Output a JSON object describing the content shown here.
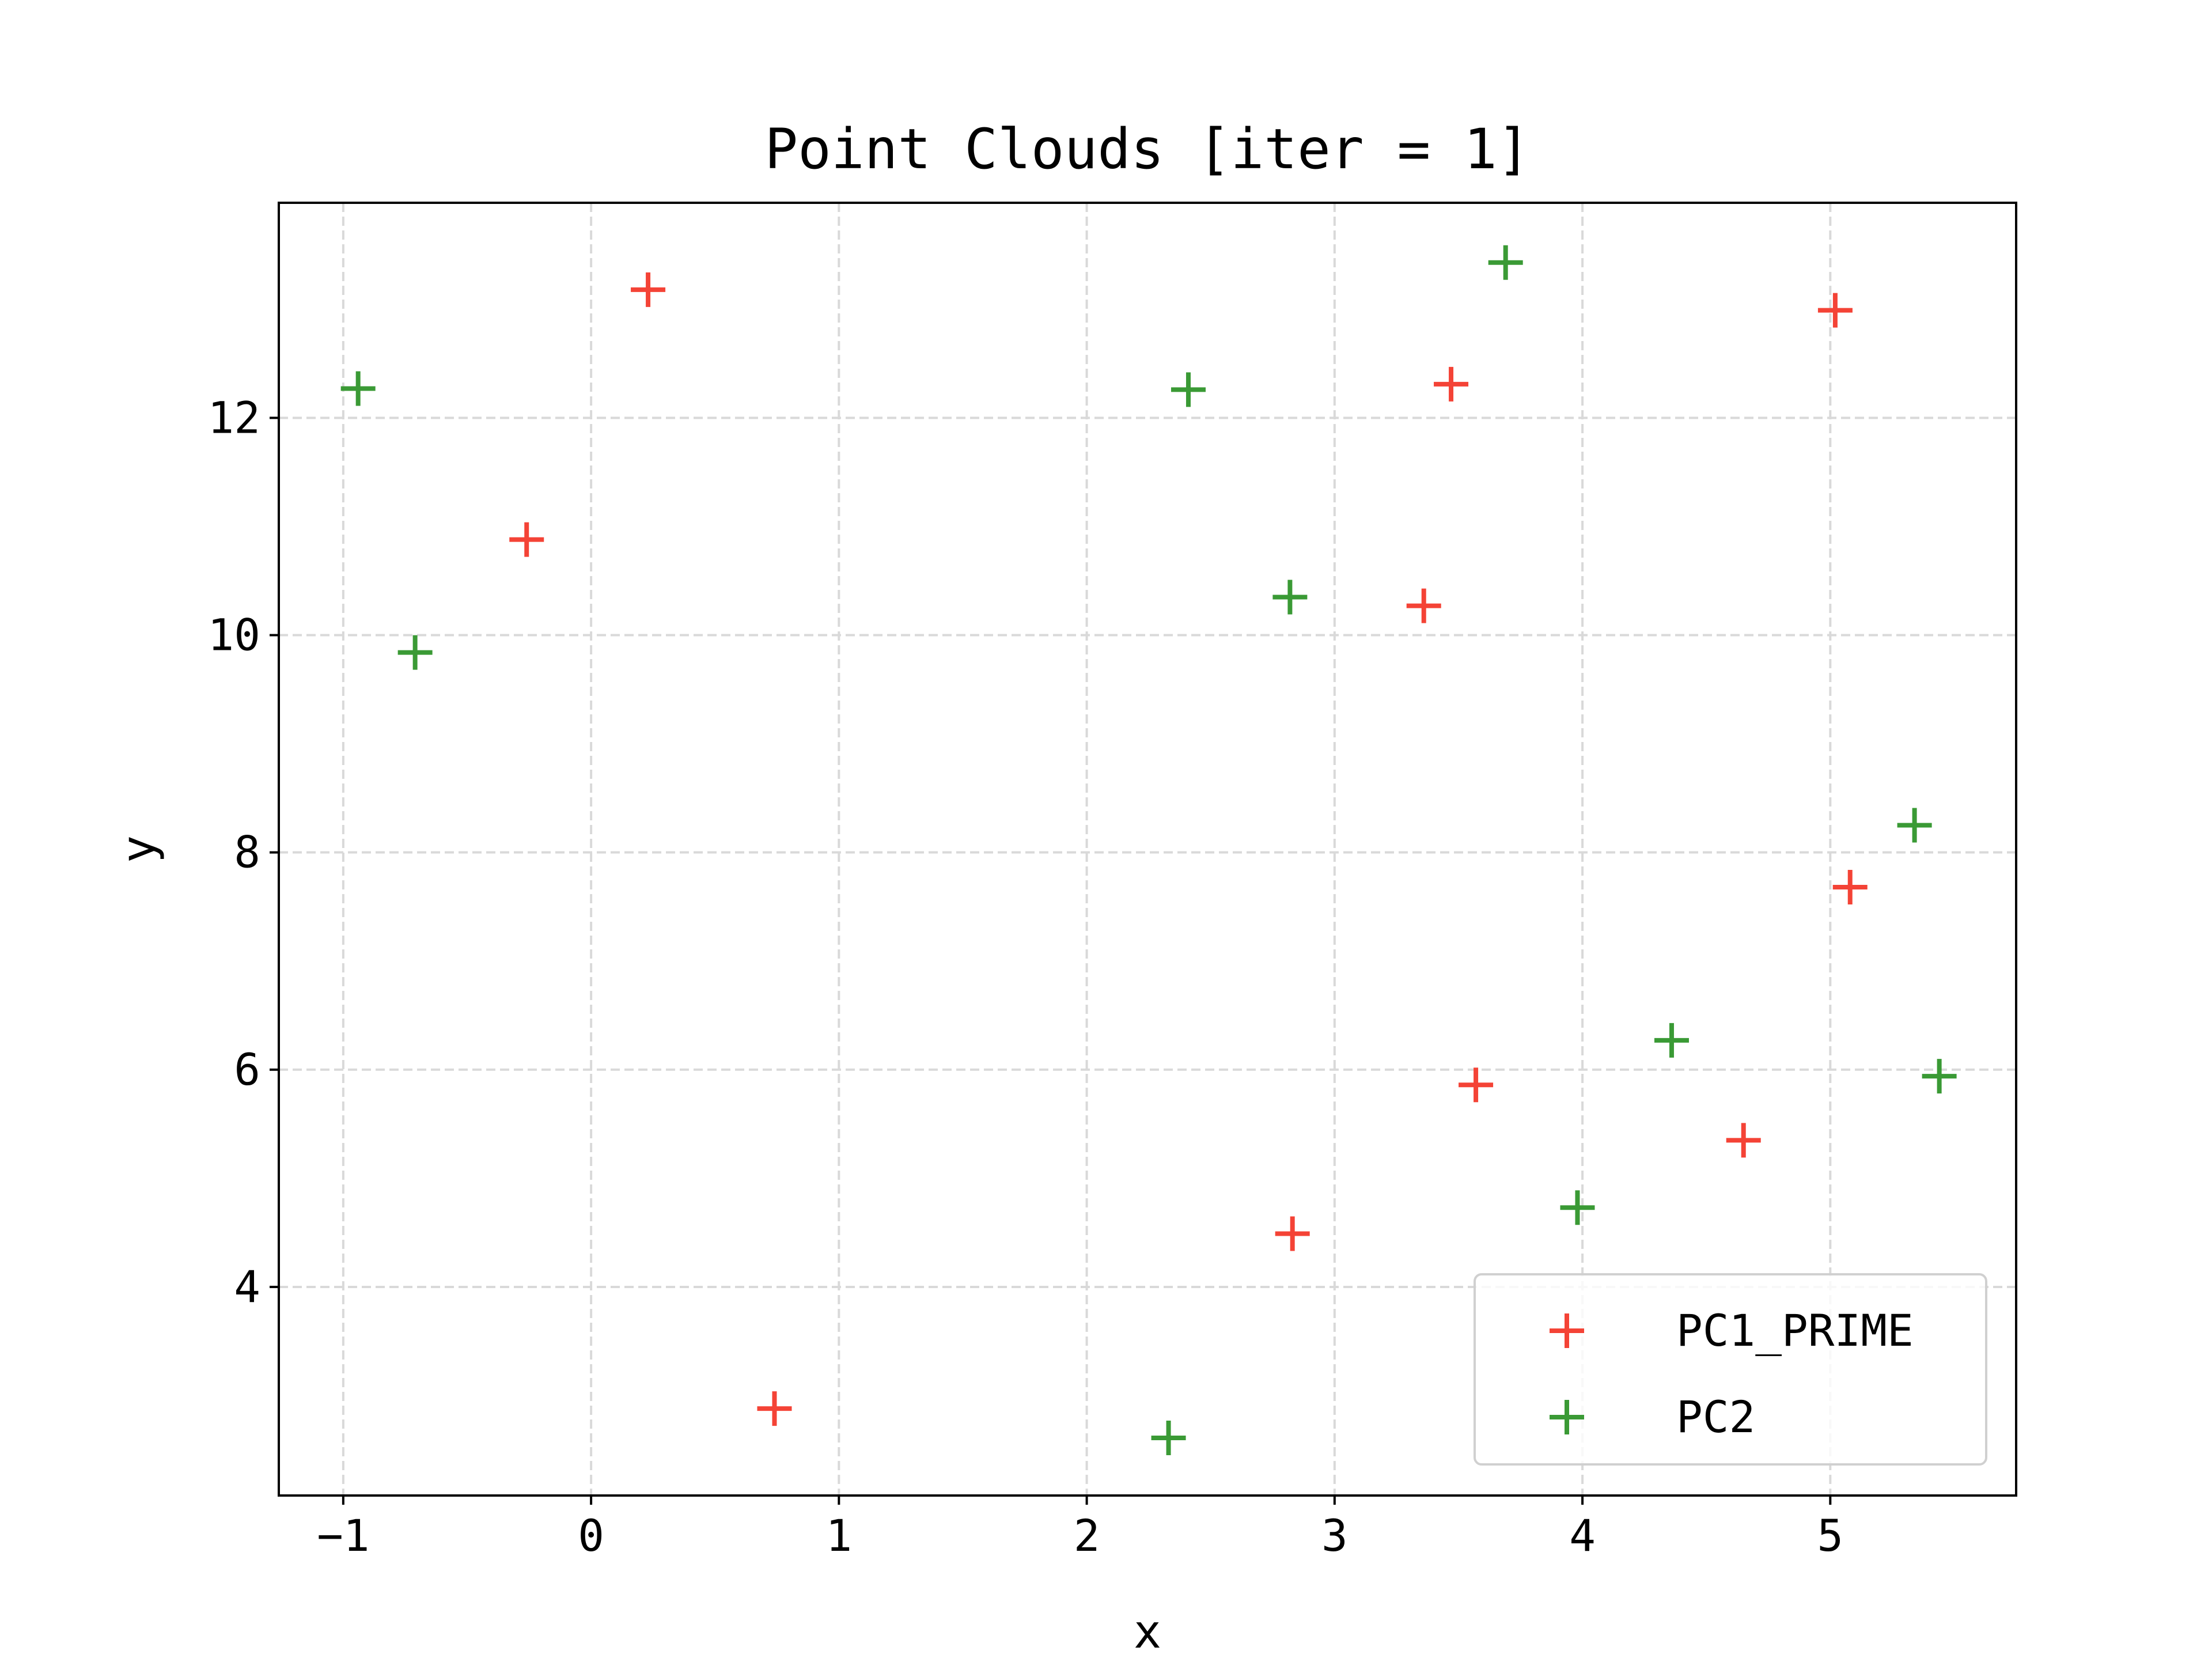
{
  "chart_data": {
    "type": "scatter",
    "title": "Point Clouds [iter = 1]",
    "xlabel": "x",
    "ylabel": "y",
    "xlim": [
      -1.26,
      5.75
    ],
    "ylim": [
      2.08,
      13.98
    ],
    "xticks": [
      -1,
      0,
      1,
      2,
      3,
      4,
      5
    ],
    "xtick_labels": [
      "−1",
      "0",
      "1",
      "2",
      "3",
      "4",
      "5"
    ],
    "yticks": [
      4,
      6,
      8,
      10,
      12
    ],
    "ytick_labels": [
      "4",
      "6",
      "8",
      "10",
      "12"
    ],
    "grid": true,
    "legend_position": "lower-right",
    "marker": "+",
    "series": [
      {
        "name": "PC1_PRIME",
        "color": "#f44336",
        "points": [
          {
            "x": 0.23,
            "y": 13.18
          },
          {
            "x": -0.26,
            "y": 10.88
          },
          {
            "x": 0.74,
            "y": 2.88
          },
          {
            "x": 2.83,
            "y": 4.49
          },
          {
            "x": 3.36,
            "y": 10.27
          },
          {
            "x": 3.47,
            "y": 12.31
          },
          {
            "x": 3.57,
            "y": 5.86
          },
          {
            "x": 4.65,
            "y": 5.35
          },
          {
            "x": 5.02,
            "y": 12.99
          },
          {
            "x": 5.08,
            "y": 7.68
          }
        ]
      },
      {
        "name": "PC2",
        "color": "#3a9a35",
        "points": [
          {
            "x": -0.94,
            "y": 12.27
          },
          {
            "x": -0.71,
            "y": 9.84
          },
          {
            "x": 2.41,
            "y": 12.26
          },
          {
            "x": 2.82,
            "y": 10.35
          },
          {
            "x": 3.69,
            "y": 13.43
          },
          {
            "x": 2.33,
            "y": 2.61
          },
          {
            "x": 3.98,
            "y": 4.73
          },
          {
            "x": 4.36,
            "y": 6.27
          },
          {
            "x": 5.34,
            "y": 8.25
          },
          {
            "x": 5.44,
            "y": 5.94
          }
        ]
      }
    ]
  }
}
